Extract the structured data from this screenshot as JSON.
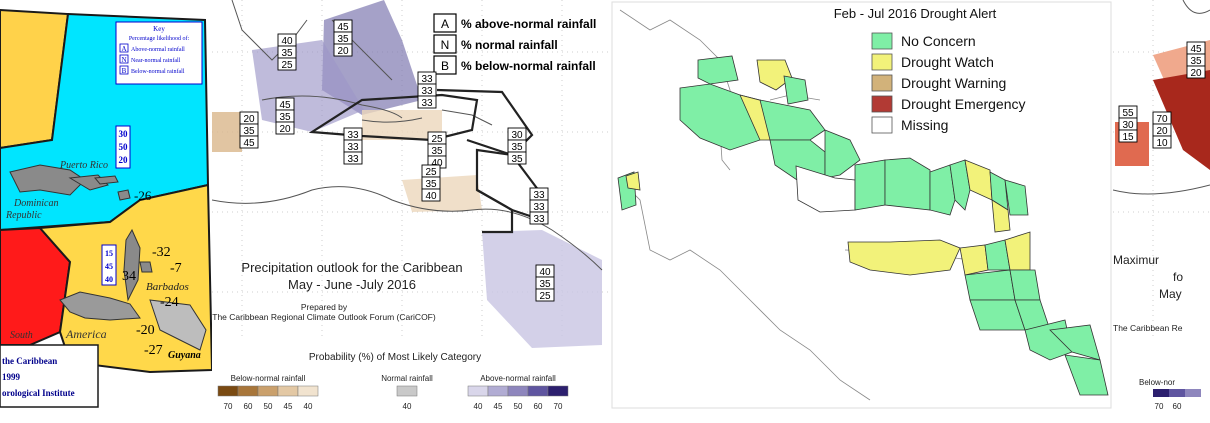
{
  "panel1": {
    "key_title": "Key",
    "key_subtitle": "Percentage likelihood of:",
    "key_items": [
      {
        "code": "A",
        "label": "Above-normal rainfall"
      },
      {
        "code": "N",
        "label": "Near-normal rainfall"
      },
      {
        "code": "B",
        "label": "Below-normal rainfall"
      }
    ],
    "box_cyan": [
      "30",
      "50",
      "20"
    ],
    "box_yellow": [
      "15",
      "45",
      "40"
    ],
    "place_puerto_rico": "Puerto Rico",
    "place_dominican": "Dominican",
    "place_republic": "Republic",
    "place_barbados": "Barbados",
    "place_guyana": "Guyana",
    "place_america": "America",
    "place_south": "South",
    "value_labels": [
      "-26",
      "34",
      "-32",
      "-7",
      "-24",
      "-20",
      "-27"
    ],
    "footer_lines": [
      "the Caribbean",
      "1999",
      "orological Institute"
    ],
    "colors": {
      "cyan": "#00e5ff",
      "yellow": "#ffd84a",
      "red": "#ff1a1a",
      "left_yellow": "#ffd24a"
    }
  },
  "panel2": {
    "legend_items": [
      {
        "code": "A",
        "label": "% above-normal rainfall"
      },
      {
        "code": "N",
        "label": "% normal rainfall"
      },
      {
        "code": "B",
        "label": "% below-normal rainfall"
      }
    ],
    "boxes": [
      [
        "40",
        "35",
        "25"
      ],
      [
        "45",
        "35",
        "20"
      ],
      [
        "33",
        "33",
        "33"
      ],
      [
        "20",
        "35",
        "45"
      ],
      [
        "45",
        "35",
        "20"
      ],
      [
        "33",
        "33",
        "33"
      ],
      [
        "25",
        "35",
        "40"
      ],
      [
        "30",
        "35",
        "35"
      ],
      [
        "25",
        "35",
        "40"
      ],
      [
        "33",
        "33",
        "33"
      ],
      [
        "40",
        "35",
        "25"
      ]
    ],
    "title": "Precipitation outlook for the Caribbean",
    "subtitle": "May - June -July 2016",
    "prepared_by": "Prepared by",
    "prepared_org": "The Caribbean Regional Climate Outlook Forum (CariCOF)",
    "prob_title": "Probability (%) of Most Likely Category",
    "bar_below": {
      "label": "Below-normal rainfall",
      "ticks": [
        "70",
        "60",
        "50",
        "45",
        "40"
      ],
      "colors": [
        "#7a4a12",
        "#a8763a",
        "#caa06c",
        "#e3c8a4",
        "#f1e3cf"
      ]
    },
    "bar_normal": {
      "label": "Normal rainfall",
      "ticks": [
        "40"
      ],
      "colors": [
        "#c9c9c9"
      ]
    },
    "bar_above": {
      "label": "Above-normal rainfall",
      "ticks": [
        "40",
        "45",
        "50",
        "60",
        "70"
      ],
      "colors": [
        "#d9d6ea",
        "#b1acd3",
        "#8e86bd",
        "#5f55a0",
        "#2c1f6e"
      ]
    }
  },
  "panel3": {
    "title": "Feb - Jul 2016 Drought Alert",
    "legend": [
      {
        "label": "No Concern",
        "color": "#7fefa6"
      },
      {
        "label": "Drought Watch",
        "color": "#f2f27a"
      },
      {
        "label": "Drought Warning",
        "color": "#d2b27a"
      },
      {
        "label": "Drought Emergency",
        "color": "#b23a34"
      },
      {
        "label": "Missing",
        "color": "#ffffff"
      }
    ]
  },
  "panel4": {
    "boxes": [
      [
        "45",
        "35",
        "20"
      ],
      [
        "55",
        "30",
        "15"
      ],
      [
        "70",
        "20",
        "10"
      ]
    ],
    "text_maximum": "Maximur",
    "text_fo": "fo",
    "text_may": "May",
    "text_caribbean": "The Caribbean Re",
    "text_below": "Below-nor",
    "ticks": [
      "70",
      "60"
    ],
    "colors": {
      "dark_red": "#a8281c",
      "salmon": "#f0a98d",
      "orange_red": "#e06a50"
    }
  }
}
